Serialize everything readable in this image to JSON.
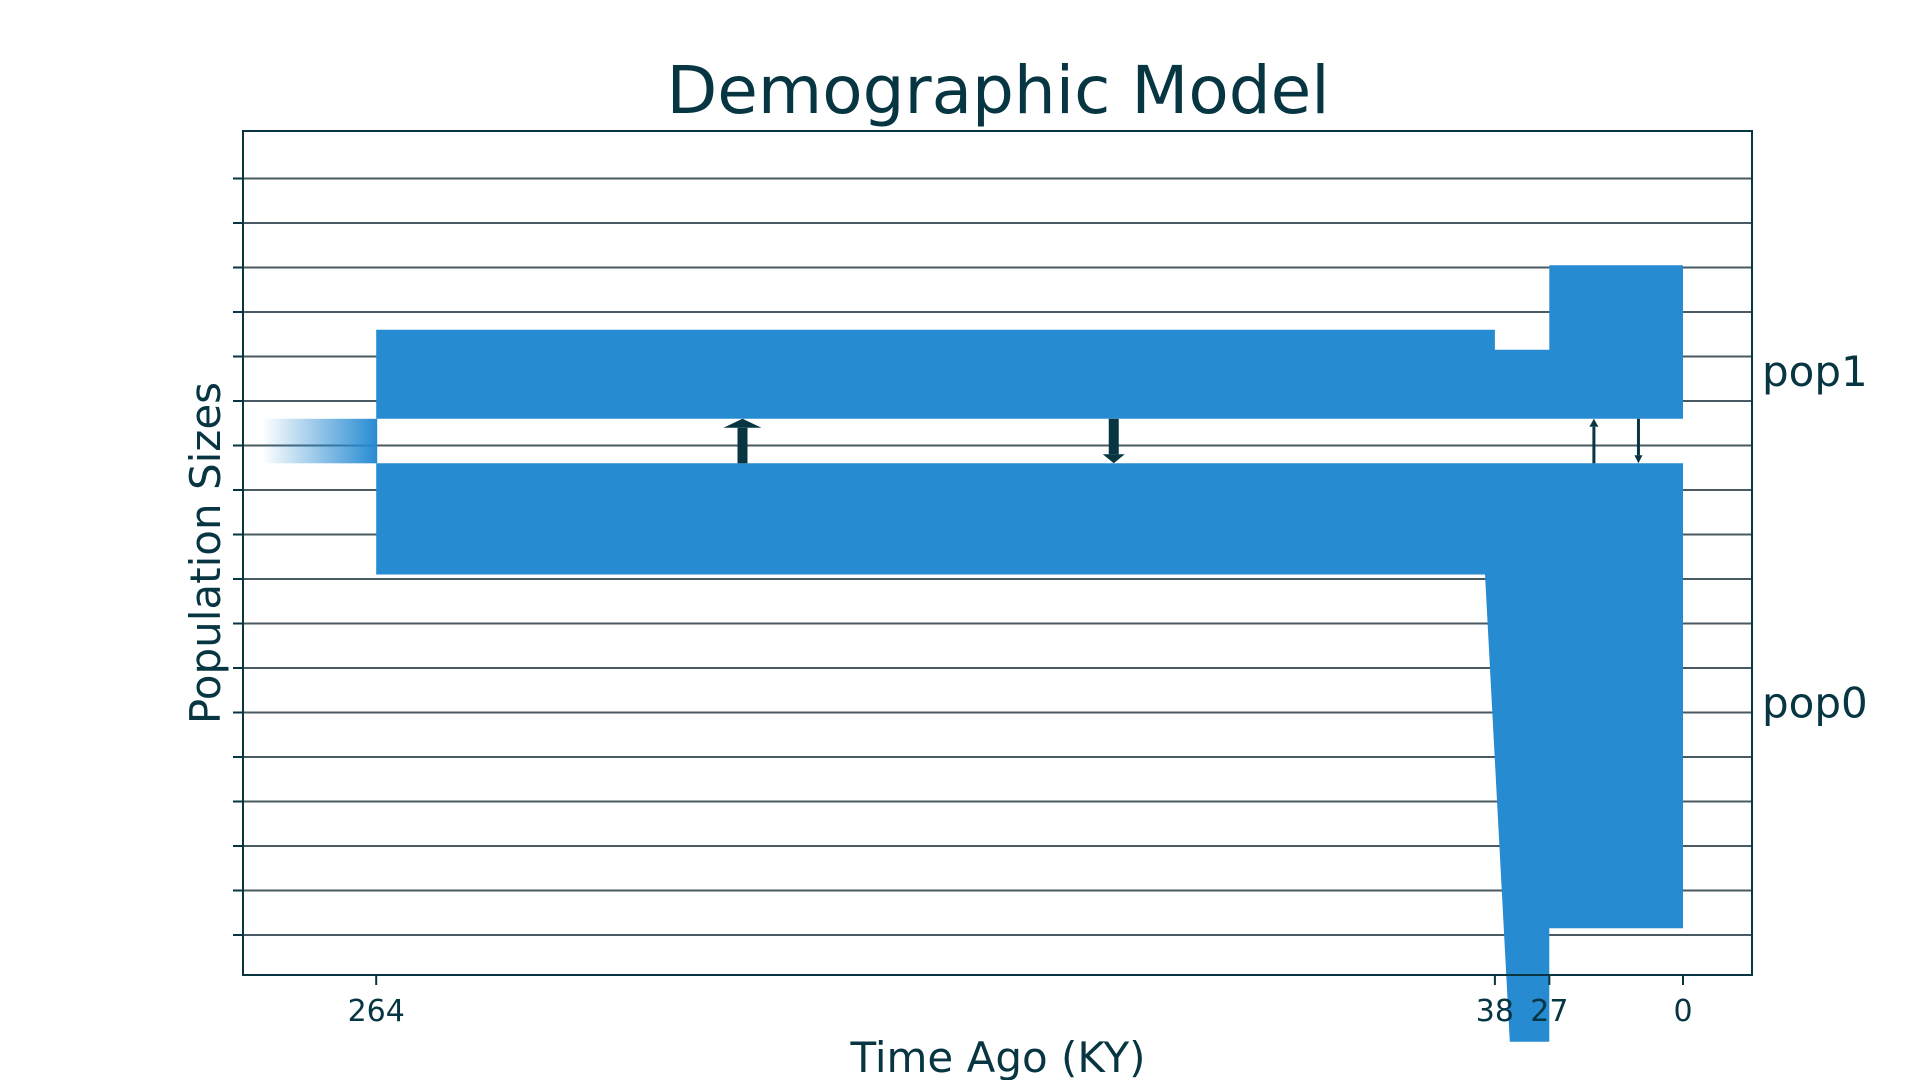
{
  "chart_data": {
    "type": "area",
    "title": "Demographic Model",
    "xlabel": "Time Ago (KY)",
    "ylabel": "Population Sizes",
    "xlim": [
      -20,
      280
    ],
    "x_ticks": [
      {
        "value": 264,
        "label": "264"
      },
      {
        "value": 38,
        "label": "38"
      },
      {
        "value": 27,
        "label": "27"
      },
      {
        "value": 0,
        "label": "0"
      }
    ],
    "grid": true,
    "ancestral_fade": {
      "x_from": 287,
      "x_to": 264,
      "y_low": 10.6,
      "y_high": 11.6,
      "color": "#278BD2"
    },
    "populations": [
      {
        "name": "pop1",
        "label": "pop1",
        "color": "#278BD2",
        "base": 11.6,
        "segments": [
          {
            "x0": 264,
            "x1": 38,
            "top0": 13.6,
            "top1": 13.6
          },
          {
            "x0": 38,
            "x1": 27,
            "top0": 13.15,
            "top1": 13.15
          },
          {
            "x0": 27,
            "x1": 0,
            "top0": 15.05,
            "top1": 15.05
          }
        ]
      },
      {
        "name": "pop0",
        "label": "pop0",
        "color": "#278BD2",
        "base": 10.6,
        "segments": [
          {
            "x0": 264,
            "x1": 40,
            "bottom0": 8.1,
            "bottom1": 8.1
          },
          {
            "x0": 40,
            "x1": 35,
            "bottom0": 8.1,
            "bottom1": -2.4
          },
          {
            "x0": 35,
            "x1": 27,
            "bottom0": -2.4,
            "bottom1": -2.4
          },
          {
            "x0": 27,
            "x1": 0,
            "bottom0": 0.15,
            "bottom1": 0.15
          }
        ]
      }
    ],
    "migrations": [
      {
        "x": 190,
        "direction": "up",
        "strength": "strong"
      },
      {
        "x": 115,
        "direction": "down",
        "strength": "strong"
      },
      {
        "x": 18,
        "direction": "up",
        "strength": "weak"
      },
      {
        "x": 9,
        "direction": "down",
        "strength": "weak"
      }
    ],
    "colors": {
      "population": "#278BD2",
      "arrows": "#073642",
      "text": "#073642",
      "grid": "#4A5A62"
    }
  }
}
